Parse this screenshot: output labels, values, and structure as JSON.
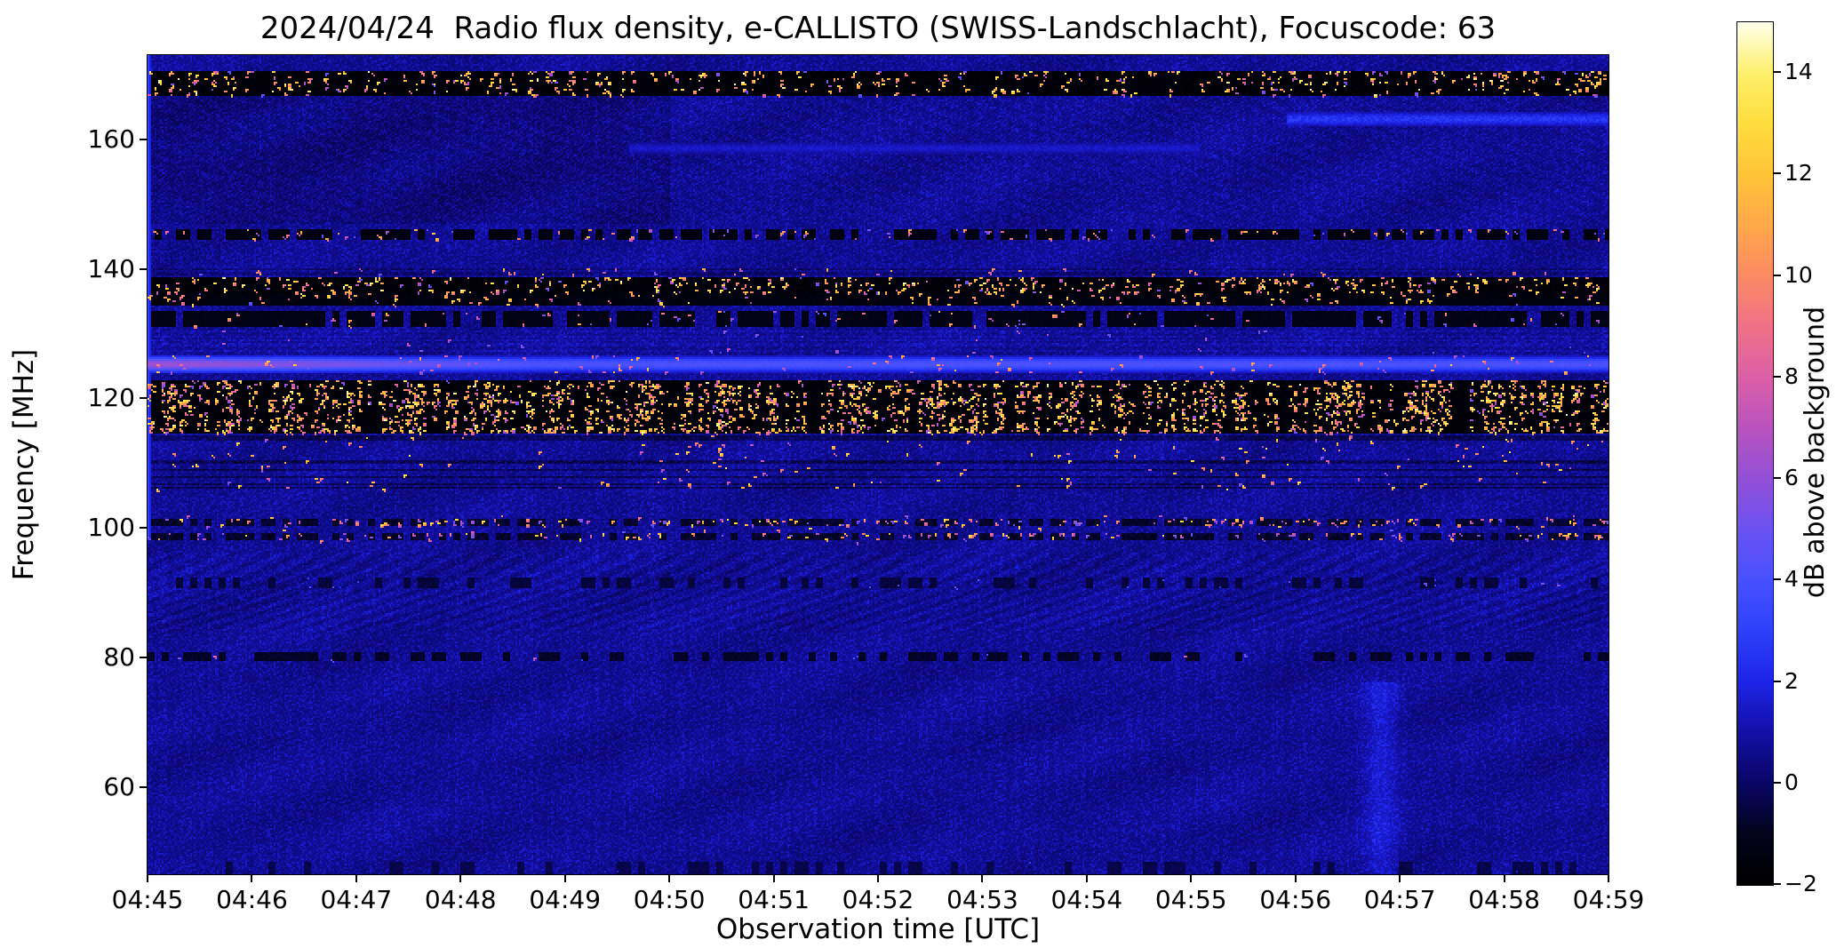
{
  "meta": {
    "date": "2024/04/24",
    "instrument": "e-CALLISTO",
    "station": "SWISS-Landschlacht",
    "focuscode": "63"
  },
  "chart_data": {
    "type": "heatmap",
    "title": "2024/04/24  Radio flux density, e-CALLISTO (SWISS-Landschlacht), Focuscode: 63",
    "xlabel": "Observation time [UTC]",
    "ylabel": "Frequency [MHz]",
    "x_tick_labels": [
      "04:45",
      "04:46",
      "04:47",
      "04:48",
      "04:49",
      "04:50",
      "04:51",
      "04:52",
      "04:53",
      "04:54",
      "04:55",
      "04:56",
      "04:57",
      "04:58",
      "04:59"
    ],
    "y_ticks": [
      160,
      140,
      120,
      100,
      80,
      60
    ],
    "y_tick_labels": [
      "160",
      "140",
      "120",
      "100",
      "80",
      "60"
    ],
    "y_range_mhz": [
      46.5,
      173
    ],
    "grid": false,
    "legend": "colorbar-right",
    "colorbar": {
      "label": "dB above background",
      "range": [
        -2,
        15
      ],
      "ticks": [
        14,
        12,
        10,
        8,
        6,
        4,
        2,
        0,
        -2
      ],
      "tick_labels": [
        "14",
        "12",
        "10",
        "8",
        "6",
        "4",
        "2",
        "0",
        "−2"
      ],
      "stops": [
        {
          "value": -2,
          "color": "#000000"
        },
        {
          "value": -1,
          "color": "#03031c"
        },
        {
          "value": 0,
          "color": "#0a0666"
        },
        {
          "value": 1,
          "color": "#1310a8"
        },
        {
          "value": 2,
          "color": "#1d24e8"
        },
        {
          "value": 3,
          "color": "#2e41fa"
        },
        {
          "value": 4,
          "color": "#4750ff"
        },
        {
          "value": 5,
          "color": "#6b52f2"
        },
        {
          "value": 6,
          "color": "#9350d8"
        },
        {
          "value": 7,
          "color": "#b953c0"
        },
        {
          "value": 8,
          "color": "#dc5fa8"
        },
        {
          "value": 9,
          "color": "#f07188"
        },
        {
          "value": 10,
          "color": "#fc8a64"
        },
        {
          "value": 11,
          "color": "#ffa84a"
        },
        {
          "value": 12,
          "color": "#ffc438"
        },
        {
          "value": 13,
          "color": "#ffdc3c"
        },
        {
          "value": 14,
          "color": "#fdf06a"
        },
        {
          "value": 15,
          "color": "#ffffe8"
        }
      ]
    },
    "background_db_range": [
      0,
      1.3
    ],
    "rfi_bands": [
      {
        "name": "pager-band-168",
        "f_low": 166.6,
        "f_high": 170.6,
        "style": "black_speckle",
        "base_db": -2.0,
        "speckle_db": [
          5,
          15
        ],
        "density": 0.085,
        "burstiness": 0.5
      },
      {
        "name": "streak-163",
        "f_low": 161.9,
        "f_high": 164.3,
        "style": "soft_line",
        "peak_db": 2.6,
        "x_start": 0.78,
        "x_end": 1.0
      },
      {
        "name": "streak-159",
        "f_low": 157.6,
        "f_high": 159.6,
        "style": "soft_line",
        "peak_db": 1.5,
        "x_start": 0.33,
        "x_end": 0.72
      },
      {
        "name": "dash-145",
        "f_low": 144.5,
        "f_high": 146.1,
        "style": "dark_dash",
        "dash_db": -1.7,
        "duty": 0.65,
        "speckle_db": [
          4,
          13
        ],
        "density": 0.015
      },
      {
        "name": "speckle-139",
        "f_low": 138.9,
        "f_high": 140.1,
        "style": "dim_speckle",
        "base_delta": -0.5,
        "speckle_db": [
          4,
          12
        ],
        "density": 0.02
      },
      {
        "name": "pager-band-137",
        "f_low": 136.3,
        "f_high": 138.6,
        "style": "black_speckle",
        "base_db": -2.0,
        "speckle_db": [
          5,
          15
        ],
        "density": 0.09,
        "burstiness": 0.55
      },
      {
        "name": "dark-135",
        "f_low": 134.3,
        "f_high": 136.3,
        "style": "black_speckle",
        "base_db": -1.8,
        "speckle_db": [
          5,
          14
        ],
        "density": 0.03,
        "burstiness": 0.5
      },
      {
        "name": "dark-132",
        "f_low": 130.9,
        "f_high": 133.6,
        "style": "dark_dash",
        "dash_db": -1.5,
        "duty": 0.78,
        "speckle_db": [
          4,
          12
        ],
        "density": 0.01
      },
      {
        "name": "glow-128",
        "f_low": 126.8,
        "f_high": 130.5,
        "style": "dim_speckle",
        "base_delta": 0.3,
        "speckle_db": [
          3,
          8
        ],
        "density": 0.004
      },
      {
        "name": "blue-line-125",
        "f_low": 123.9,
        "f_high": 126.6,
        "style": "bright_line",
        "peak_db": 4.0,
        "left_boost": 2.2
      },
      {
        "name": "airband-119",
        "f_low": 114.6,
        "f_high": 122.9,
        "style": "black_speckle",
        "base_db": -2.0,
        "speckle_db": [
          6,
          15
        ],
        "density": 0.13,
        "burstiness": 0.6
      },
      {
        "name": "scatter-110",
        "f_low": 105.8,
        "f_high": 114.2,
        "style": "dim_speckle",
        "base_delta": -0.9,
        "speckle_db": [
          5,
          14
        ],
        "density": 0.014
      },
      {
        "name": "fm-100",
        "f_low": 97.6,
        "f_high": 101.8,
        "style": "dash_speckle",
        "line_centers": [
          100.7,
          98.6
        ],
        "dash_db": -1.2,
        "speckle_db": [
          5,
          14
        ],
        "density": 0.012
      },
      {
        "name": "ripple-90",
        "f_low": 84.0,
        "f_high": 96.2,
        "style": "texture",
        "amp": 0.55
      },
      {
        "name": "dash-91",
        "f_low": 90.6,
        "f_high": 92.4,
        "style": "dark_dash",
        "dash_db": -0.8,
        "duty": 0.3,
        "speckle_db": [
          2,
          6
        ],
        "density": 0.003
      },
      {
        "name": "dash-80",
        "f_low": 79.4,
        "f_high": 80.9,
        "style": "dark_dash",
        "dash_db": -1.1,
        "duty": 0.5,
        "speckle_db": [
          3,
          9
        ],
        "density": 0.005
      },
      {
        "name": "dash-47",
        "f_low": 46.5,
        "f_high": 48.3,
        "style": "dark_dash",
        "dash_db": -0.6,
        "duty": 0.3,
        "speckle_db": [
          2,
          5
        ],
        "density": 0.002
      }
    ],
    "features": [
      {
        "name": "darker-rect-upper-left",
        "x_start": 0.0,
        "x_end": 0.357,
        "f_low": 147,
        "f_high": 166.6,
        "delta_db": -0.33
      },
      {
        "name": "bright-column-0457",
        "x_center": 0.845,
        "f_low": 46.5,
        "f_high": 76,
        "peak_db": 1.0,
        "width_frac": 0.01
      },
      {
        "name": "left-edge-line",
        "x_start": 0.0,
        "x_end": 0.0025,
        "f_low": 98,
        "f_high": 173,
        "db": 3.0
      }
    ]
  }
}
